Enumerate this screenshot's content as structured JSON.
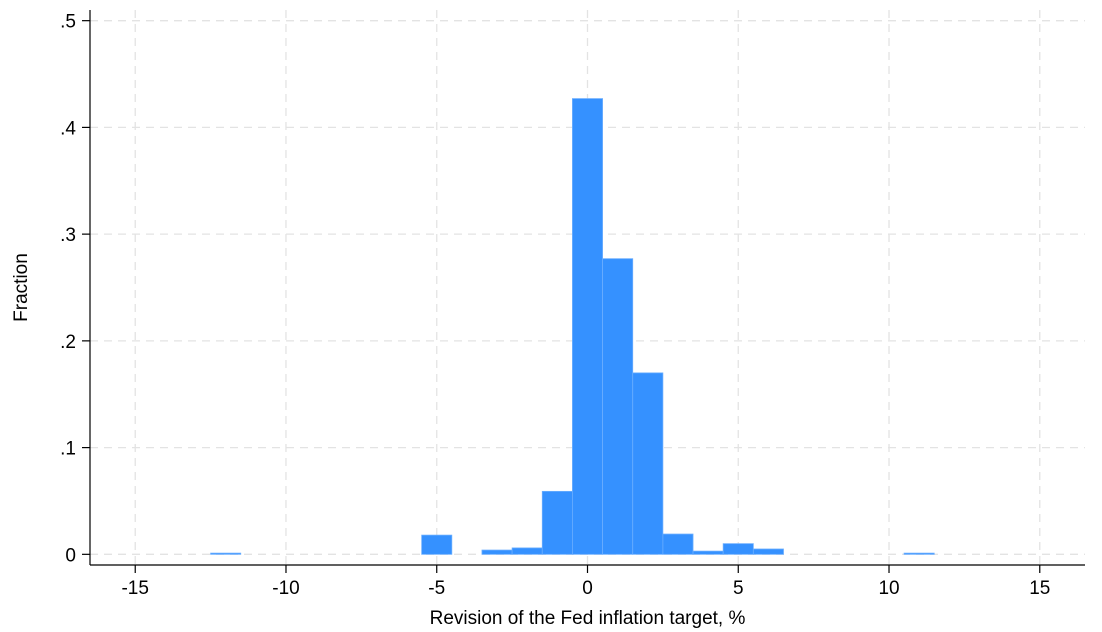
{
  "chart_data": {
    "type": "bar",
    "xlabel": "Revision of the Fed inflation target, %",
    "ylabel": "Fraction",
    "xlim": [
      -16.5,
      16.5
    ],
    "ylim": [
      -0.01,
      0.51
    ],
    "xticks": [
      -15,
      -10,
      -5,
      0,
      5,
      10,
      15
    ],
    "xtick_labels": [
      "-15",
      "-10",
      "-5",
      "0",
      "5",
      "10",
      "15"
    ],
    "yticks": [
      0,
      0.1,
      0.2,
      0.3,
      0.4,
      0.5
    ],
    "ytick_labels": [
      "0",
      ".1",
      ".2",
      ".3",
      ".4",
      ".5"
    ],
    "grid": true,
    "bin_width": 1,
    "bar_color": "#3591ff",
    "bins": [
      {
        "x": -12,
        "value": 0.001
      },
      {
        "x": -5,
        "value": 0.018
      },
      {
        "x": -3,
        "value": 0.004
      },
      {
        "x": -2,
        "value": 0.006
      },
      {
        "x": -1,
        "value": 0.059
      },
      {
        "x": 0,
        "value": 0.427
      },
      {
        "x": 1,
        "value": 0.277
      },
      {
        "x": 2,
        "value": 0.17
      },
      {
        "x": 3,
        "value": 0.019
      },
      {
        "x": 4,
        "value": 0.003
      },
      {
        "x": 5,
        "value": 0.01
      },
      {
        "x": 6,
        "value": 0.005
      },
      {
        "x": 11,
        "value": 0.001
      }
    ]
  }
}
